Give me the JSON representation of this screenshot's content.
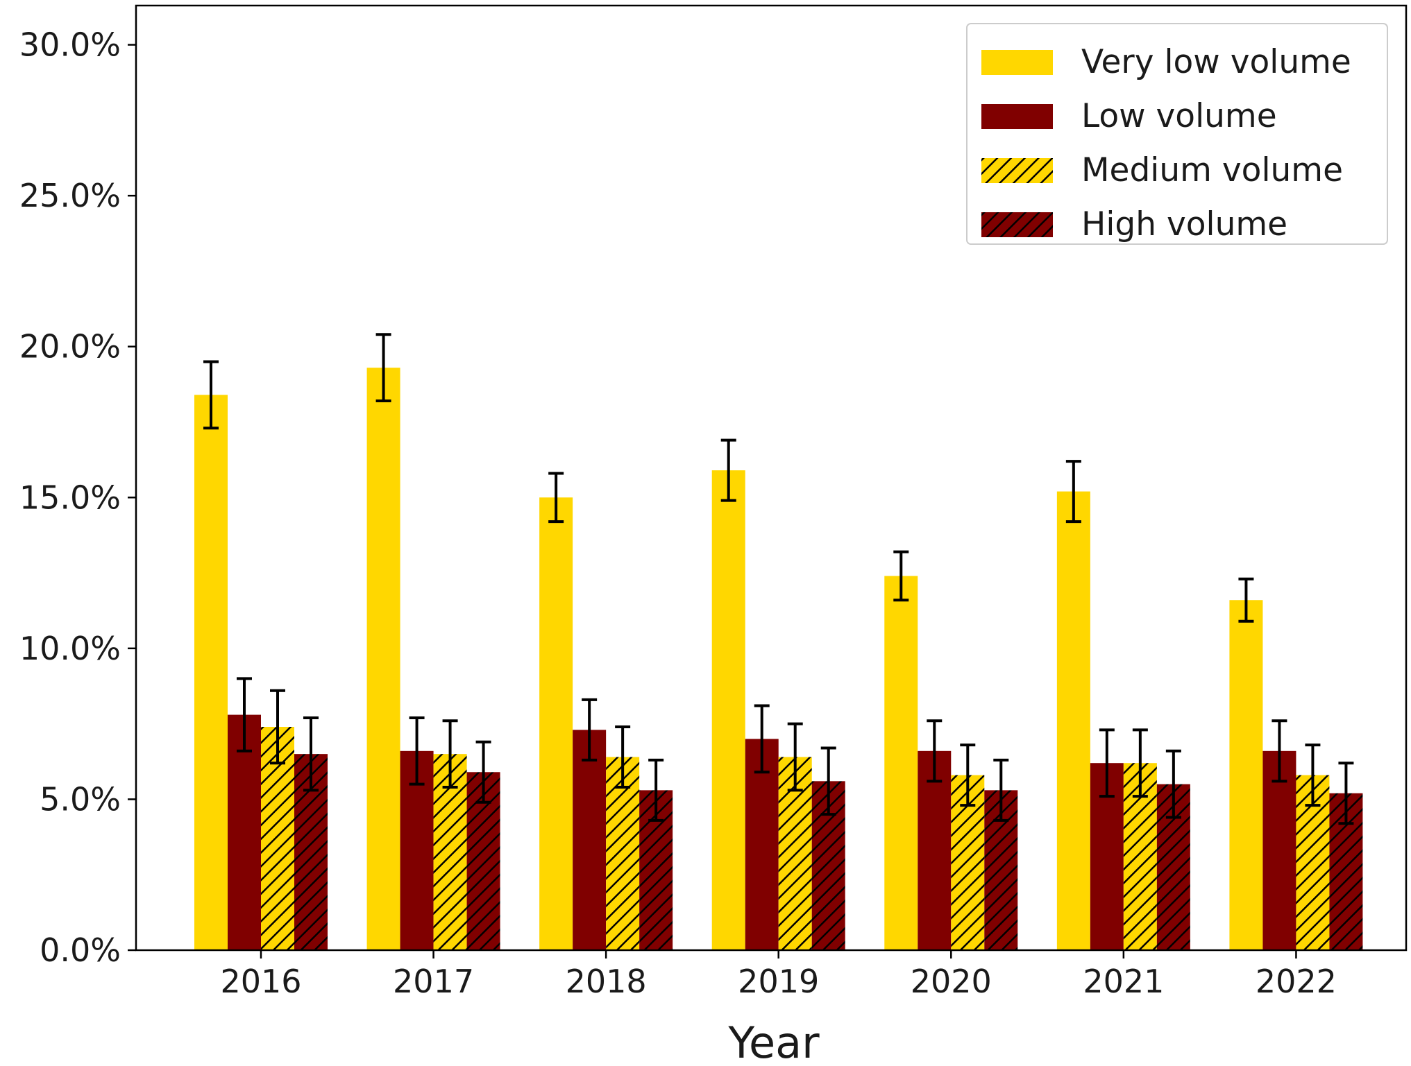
{
  "chart_data": {
    "type": "bar",
    "title": "",
    "xlabel": "Year",
    "ylabel": "",
    "categories": [
      "2016",
      "2017",
      "2018",
      "2019",
      "2020",
      "2021",
      "2022"
    ],
    "ylim": [
      0,
      31.3
    ],
    "yticks": [
      0,
      5,
      10,
      15,
      20,
      25,
      30
    ],
    "ytick_labels": [
      "0.0%",
      "5.0%",
      "10.0%",
      "15.0%",
      "20.0%",
      "25.0%",
      "30.0%"
    ],
    "legend_position": "top-right",
    "series": [
      {
        "name": "Very low volume",
        "color": "#FFD700",
        "hatch": false,
        "values": [
          18.4,
          19.3,
          15.0,
          15.9,
          12.4,
          15.2,
          11.6
        ],
        "errors": [
          1.1,
          1.1,
          0.8,
          1.0,
          0.8,
          1.0,
          0.7
        ]
      },
      {
        "name": "Low volume",
        "color": "#800000",
        "hatch": false,
        "values": [
          7.8,
          6.6,
          7.3,
          7.0,
          6.6,
          6.2,
          6.6
        ],
        "errors": [
          1.2,
          1.1,
          1.0,
          1.1,
          1.0,
          1.1,
          1.0
        ]
      },
      {
        "name": "Medium volume",
        "color": "#FFD700",
        "hatch": true,
        "values": [
          7.4,
          6.5,
          6.4,
          6.4,
          5.8,
          6.2,
          5.8
        ],
        "errors": [
          1.2,
          1.1,
          1.0,
          1.1,
          1.0,
          1.1,
          1.0
        ]
      },
      {
        "name": "High volume",
        "color": "#800000",
        "hatch": true,
        "values": [
          6.5,
          5.9,
          5.3,
          5.6,
          5.3,
          5.5,
          5.2
        ],
        "errors": [
          1.2,
          1.0,
          1.0,
          1.1,
          1.0,
          1.1,
          1.0
        ]
      }
    ]
  }
}
